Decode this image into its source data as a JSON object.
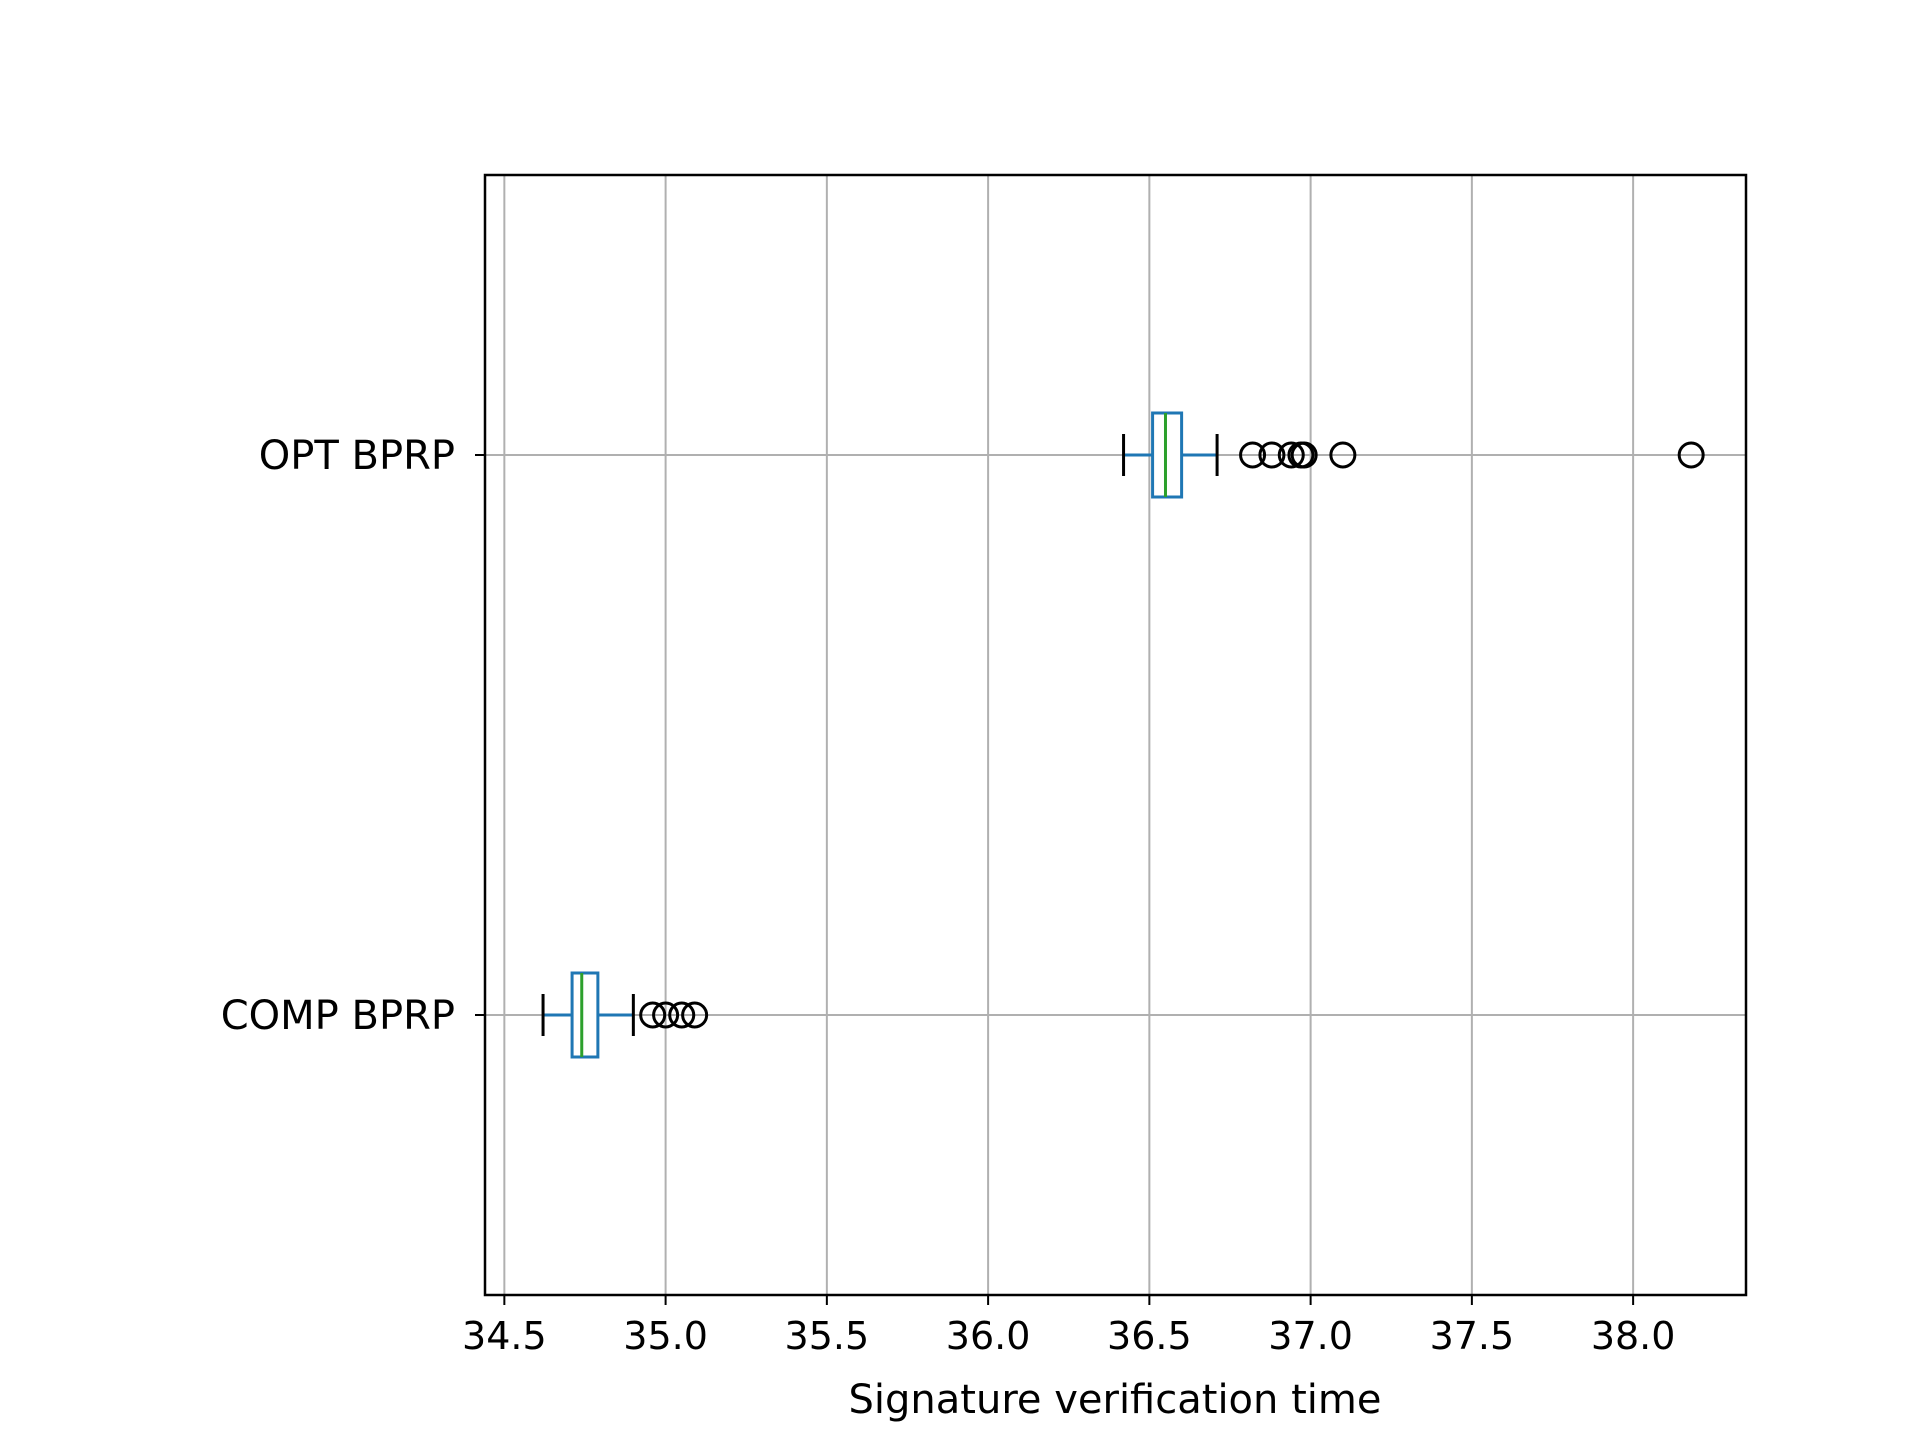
{
  "chart_data": {
    "type": "boxplot",
    "orientation": "horizontal",
    "title": "",
    "xlabel": "Signature verification time",
    "ylabel": "",
    "xlim": [
      34.44,
      38.35
    ],
    "xticks": [
      34.5,
      35.0,
      35.5,
      36.0,
      36.5,
      37.0,
      37.5,
      38.0
    ],
    "xtick_labels": [
      "34.5",
      "35.0",
      "35.5",
      "36.0",
      "36.5",
      "37.0",
      "37.5",
      "38.0"
    ],
    "grid": true,
    "categories": [
      "COMP BPRP",
      "OPT BPRP"
    ],
    "boxes": [
      {
        "label": "COMP BPRP",
        "whisker_low": 34.62,
        "q1": 34.71,
        "median": 34.74,
        "q3": 34.79,
        "whisker_high": 34.9,
        "outliers": [
          34.96,
          35.0,
          35.05,
          35.09
        ]
      },
      {
        "label": "OPT BPRP",
        "whisker_low": 36.42,
        "q1": 36.51,
        "median": 36.55,
        "q3": 36.6,
        "whisker_high": 36.71,
        "outliers": [
          36.82,
          36.88,
          36.94,
          36.97,
          36.98,
          37.1,
          38.18
        ]
      }
    ],
    "colors": {
      "box": "#1f77b4",
      "median": "#2ca02c",
      "cap": "#000000",
      "outlier": "#000000",
      "grid": "#b0b0b0",
      "axes": "#000000"
    }
  }
}
